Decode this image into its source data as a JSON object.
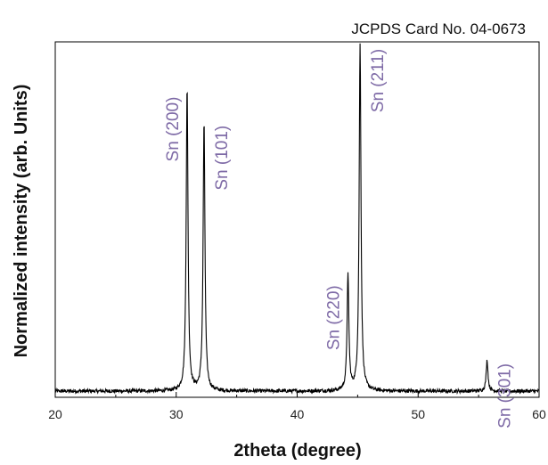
{
  "chart_data": {
    "type": "line",
    "title": "",
    "annotation": "JCPDS Card No. 04-0673",
    "xlabel": "2theta (degree)",
    "ylabel": "Normalized intensity (arb. Units)",
    "xlim": [
      20,
      60
    ],
    "xticks": [
      20,
      30,
      40,
      50,
      60
    ],
    "ylim": [
      0,
      1.15
    ],
    "yticks_shown": false,
    "grid": false,
    "legend": "none",
    "line_color": "#000000",
    "label_color": "#7e6aa6",
    "baseline": 0.02,
    "peaks": [
      {
        "x": 30.9,
        "y": 1.0,
        "label": "Sn (200)"
      },
      {
        "x": 32.3,
        "y": 0.89,
        "label": "Sn (101)"
      },
      {
        "x": 44.2,
        "y": 0.39,
        "label": "Sn (220)"
      },
      {
        "x": 45.2,
        "y": 1.14,
        "label": "Sn (211)"
      },
      {
        "x": 55.7,
        "y": 0.12,
        "label": "Sn (301)"
      }
    ]
  }
}
